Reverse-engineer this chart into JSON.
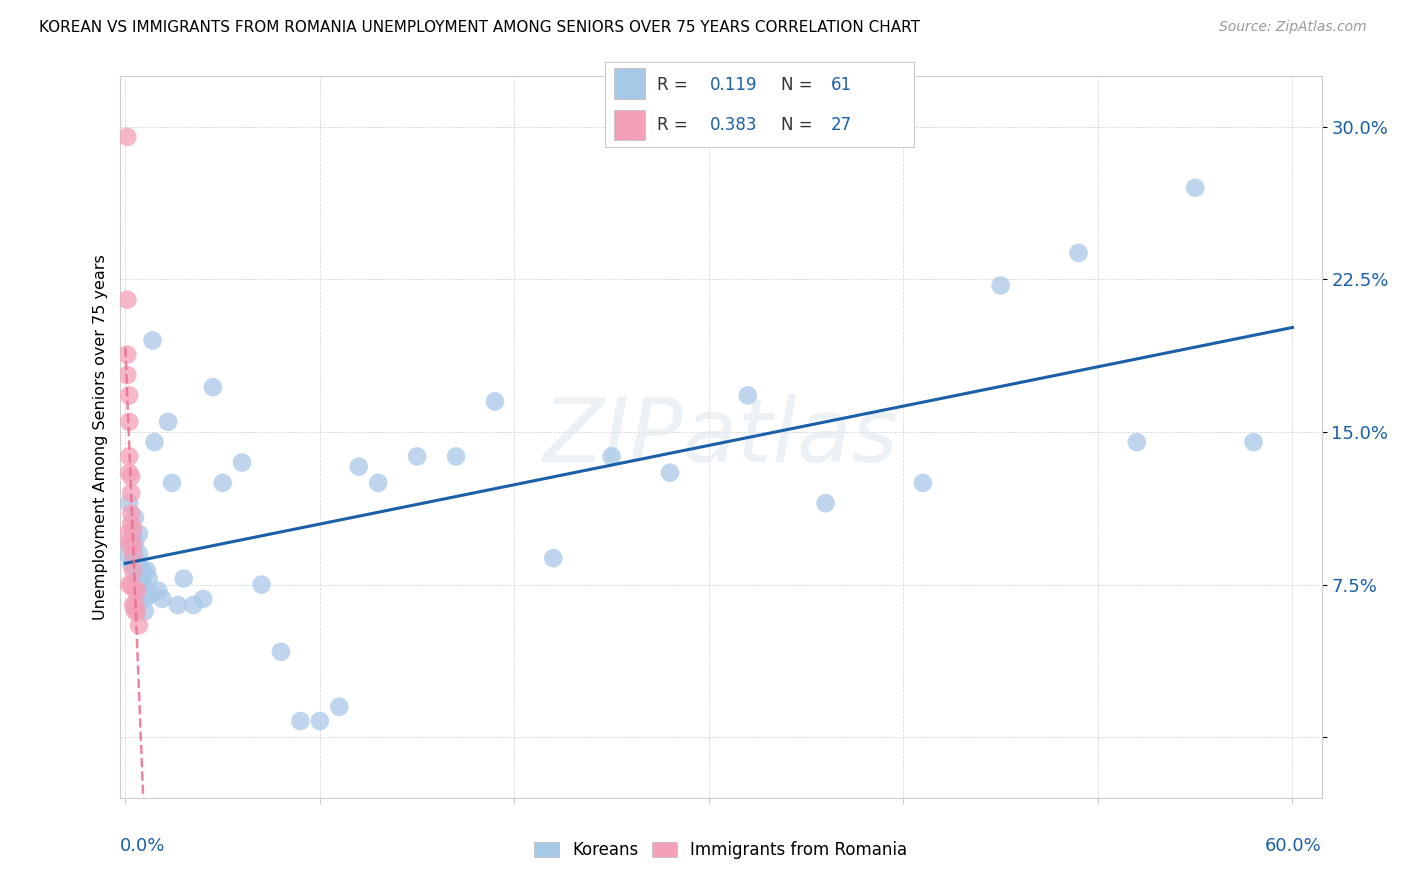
{
  "title": "KOREAN VS IMMIGRANTS FROM ROMANIA UNEMPLOYMENT AMONG SENIORS OVER 75 YEARS CORRELATION CHART",
  "source": "Source: ZipAtlas.com",
  "ylabel": "Unemployment Among Seniors over 75 years",
  "blue_color": "#a8c8e8",
  "pink_color": "#f4a0b8",
  "trendline_blue_color": "#1a5fa8",
  "trendline_pink_color": "#e87090",
  "watermark": "ZIPatlas",
  "R_blue": "0.119",
  "N_blue": "61",
  "R_pink": "0.383",
  "N_pink": "27",
  "xlim": [
    -0.003,
    0.615
  ],
  "ylim": [
    -0.03,
    0.325
  ],
  "yticks": [
    0.0,
    0.075,
    0.15,
    0.225,
    0.3
  ],
  "ytick_labels": [
    "",
    "7.5%",
    "15.0%",
    "22.5%",
    "30.0%"
  ],
  "xtick_label_left": "0.0%",
  "xtick_label_right": "60.0%",
  "koreans_x": [
    0.001,
    0.002,
    0.002,
    0.003,
    0.003,
    0.004,
    0.004,
    0.004,
    0.005,
    0.005,
    0.005,
    0.006,
    0.006,
    0.006,
    0.007,
    0.007,
    0.007,
    0.008,
    0.008,
    0.008,
    0.009,
    0.009,
    0.01,
    0.01,
    0.011,
    0.012,
    0.013,
    0.014,
    0.015,
    0.017,
    0.019,
    0.022,
    0.024,
    0.027,
    0.03,
    0.035,
    0.04,
    0.045,
    0.05,
    0.06,
    0.07,
    0.08,
    0.09,
    0.1,
    0.11,
    0.12,
    0.13,
    0.15,
    0.17,
    0.19,
    0.22,
    0.25,
    0.28,
    0.32,
    0.36,
    0.41,
    0.45,
    0.49,
    0.52,
    0.55,
    0.58
  ],
  "koreans_y": [
    0.09,
    0.095,
    0.115,
    0.095,
    0.085,
    0.1,
    0.09,
    0.085,
    0.095,
    0.088,
    0.108,
    0.085,
    0.078,
    0.082,
    0.09,
    0.1,
    0.078,
    0.075,
    0.082,
    0.078,
    0.082,
    0.078,
    0.068,
    0.062,
    0.082,
    0.078,
    0.07,
    0.195,
    0.145,
    0.072,
    0.068,
    0.155,
    0.125,
    0.065,
    0.078,
    0.065,
    0.068,
    0.172,
    0.125,
    0.135,
    0.075,
    0.042,
    0.008,
    0.008,
    0.015,
    0.133,
    0.125,
    0.138,
    0.138,
    0.165,
    0.088,
    0.138,
    0.13,
    0.168,
    0.115,
    0.125,
    0.222,
    0.238,
    0.145,
    0.27,
    0.145
  ],
  "romania_x": [
    0.001,
    0.001,
    0.001,
    0.001,
    0.001,
    0.002,
    0.002,
    0.002,
    0.002,
    0.002,
    0.002,
    0.003,
    0.003,
    0.003,
    0.003,
    0.003,
    0.004,
    0.004,
    0.004,
    0.004,
    0.004,
    0.005,
    0.005,
    0.005,
    0.006,
    0.006,
    0.007
  ],
  "romania_y": [
    0.295,
    0.215,
    0.188,
    0.178,
    0.1,
    0.168,
    0.155,
    0.138,
    0.13,
    0.095,
    0.075,
    0.128,
    0.12,
    0.11,
    0.105,
    0.075,
    0.102,
    0.095,
    0.09,
    0.082,
    0.065,
    0.072,
    0.065,
    0.062,
    0.072,
    0.062,
    0.055
  ]
}
